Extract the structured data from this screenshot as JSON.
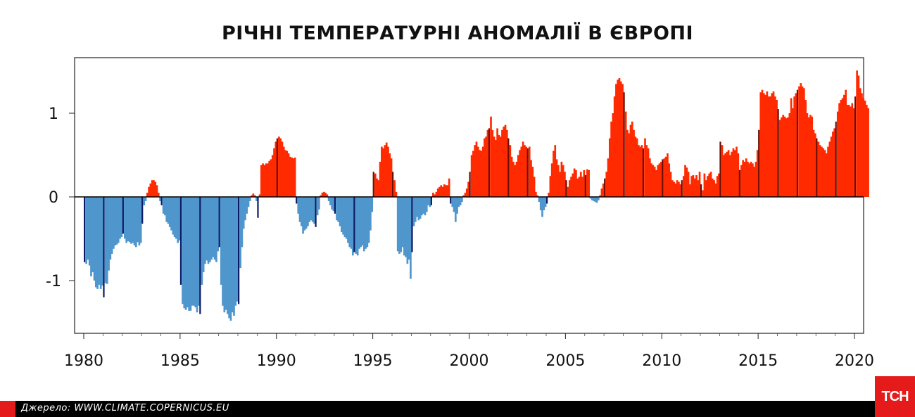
{
  "chart_data": {
    "type": "bar",
    "title": "РІЧНІ ТЕМПЕРАТУРНІ АНОМАЛІЇ В ЄВРОПІ",
    "xlabel": "",
    "ylabel": "",
    "xlim": [
      1979.75,
      2020.0
    ],
    "ylim": [
      -1.65,
      1.7
    ],
    "x_ticks": [
      1980,
      1985,
      1990,
      1995,
      2000,
      2005,
      2010,
      2015,
      2020
    ],
    "x_tick_labels": [
      "1980",
      "1985",
      "1990",
      "1995",
      "2000",
      "2005",
      "2010",
      "2015",
      "2020"
    ],
    "y_ticks": [
      1,
      0,
      -1
    ],
    "y_tick_labels": [
      "1",
      "0",
      "-1"
    ],
    "description_note": "Rolling 12-month average anomaly (°C) sampled monthly; January values highlighted",
    "positive_color": "#ff2a00",
    "negative_color": "#4f96cc",
    "highlight_positive_color": "#6b0d00",
    "highlight_negative_color": "#0b1a66",
    "series": [
      {
        "name": "Temperature anomaly",
        "x_start": 1980.0,
        "x_step": 0.0833333,
        "values": [
          -0.78,
          -0.8,
          -0.75,
          -0.82,
          -0.95,
          -0.9,
          -1.0,
          -1.08,
          -1.1,
          -1.05,
          -1.1,
          -1.06,
          -1.2,
          -1.03,
          -1.04,
          -0.88,
          -0.75,
          -0.68,
          -0.62,
          -0.58,
          -0.57,
          -0.55,
          -0.5,
          -0.48,
          -0.44,
          -0.5,
          -0.55,
          -0.53,
          -0.54,
          -0.56,
          -0.55,
          -0.58,
          -0.6,
          -0.54,
          -0.58,
          -0.55,
          -0.32,
          -0.1,
          -0.05,
          0.05,
          0.12,
          0.16,
          0.2,
          0.2,
          0.18,
          0.14,
          0.05,
          -0.05,
          -0.1,
          -0.2,
          -0.22,
          -0.3,
          -0.32,
          -0.36,
          -0.4,
          -0.45,
          -0.48,
          -0.5,
          -0.55,
          -0.52,
          -1.05,
          -1.28,
          -1.33,
          -1.35,
          -1.32,
          -1.36,
          -1.36,
          -1.3,
          -1.3,
          -1.32,
          -1.38,
          -1.3,
          -1.4,
          -1.05,
          -0.9,
          -0.8,
          -0.76,
          -0.8,
          -0.78,
          -0.75,
          -0.72,
          -0.75,
          -0.78,
          -0.65,
          -0.6,
          -1.05,
          -1.3,
          -1.38,
          -1.35,
          -1.4,
          -1.45,
          -1.48,
          -1.38,
          -1.42,
          -1.3,
          -1.25,
          -1.28,
          -0.85,
          -0.6,
          -0.38,
          -0.28,
          -0.2,
          -0.12,
          -0.05,
          0.02,
          0.04,
          0.02,
          -0.05,
          -0.25,
          0.03,
          0.38,
          0.4,
          0.38,
          0.4,
          0.4,
          0.43,
          0.45,
          0.5,
          0.58,
          0.66,
          0.7,
          0.72,
          0.7,
          0.66,
          0.6,
          0.56,
          0.55,
          0.52,
          0.48,
          0.47,
          0.46,
          0.47,
          -0.08,
          -0.2,
          -0.3,
          -0.35,
          -0.44,
          -0.4,
          -0.38,
          -0.35,
          -0.3,
          -0.28,
          -0.3,
          -0.32,
          -0.36,
          -0.22,
          -0.15,
          0.02,
          0.05,
          0.06,
          0.05,
          0.03,
          -0.05,
          -0.1,
          -0.15,
          -0.17,
          -0.2,
          -0.28,
          -0.3,
          -0.35,
          -0.42,
          -0.45,
          -0.48,
          -0.5,
          -0.55,
          -0.6,
          -0.62,
          -0.7,
          -0.66,
          -0.68,
          -0.7,
          -0.62,
          -0.6,
          -0.58,
          -0.65,
          -0.62,
          -0.6,
          -0.55,
          -0.4,
          -0.18,
          0.3,
          0.28,
          0.22,
          0.2,
          0.42,
          0.6,
          0.58,
          0.62,
          0.65,
          0.6,
          0.52,
          0.46,
          0.3,
          0.2,
          0.06,
          -0.65,
          -0.68,
          -0.66,
          -0.6,
          -0.7,
          -0.72,
          -0.8,
          -0.75,
          -0.98,
          -0.66,
          -0.35,
          -0.3,
          -0.24,
          -0.28,
          -0.26,
          -0.22,
          -0.2,
          -0.22,
          -0.18,
          -0.1,
          -0.12,
          -0.1,
          0.05,
          0.03,
          0.06,
          0.1,
          0.12,
          0.14,
          0.12,
          0.15,
          0.14,
          0.14,
          0.22,
          -0.08,
          -0.12,
          -0.18,
          -0.3,
          -0.2,
          -0.12,
          -0.1,
          -0.06,
          0.02,
          0.05,
          0.1,
          0.18,
          0.3,
          0.5,
          0.55,
          0.62,
          0.66,
          0.6,
          0.56,
          0.55,
          0.6,
          0.7,
          0.72,
          0.8,
          0.82,
          0.96,
          0.8,
          0.72,
          0.68,
          0.82,
          0.74,
          0.72,
          0.8,
          0.84,
          0.86,
          0.8,
          0.7,
          0.62,
          0.48,
          0.42,
          0.38,
          0.42,
          0.5,
          0.56,
          0.6,
          0.66,
          0.62,
          0.6,
          0.58,
          0.6,
          0.44,
          0.36,
          0.24,
          0.06,
          0.02,
          -0.06,
          -0.16,
          -0.24,
          -0.16,
          -0.12,
          -0.08,
          0.05,
          0.25,
          0.4,
          0.55,
          0.62,
          0.45,
          0.38,
          0.3,
          0.42,
          0.38,
          0.3,
          0.2,
          0.12,
          0.2,
          0.24,
          0.28,
          0.34,
          0.32,
          0.22,
          0.24,
          0.3,
          0.24,
          0.32,
          0.26,
          0.33,
          0.32,
          -0.02,
          -0.04,
          -0.05,
          -0.06,
          -0.07,
          -0.04,
          0.02,
          0.1,
          0.16,
          0.22,
          0.3,
          0.46,
          0.7,
          0.9,
          1.0,
          1.2,
          1.35,
          1.4,
          1.42,
          1.38,
          1.35,
          1.25,
          1.02,
          0.8,
          0.76,
          0.86,
          0.9,
          0.8,
          0.72,
          0.7,
          0.62,
          0.6,
          0.62,
          0.58,
          0.7,
          0.62,
          0.58,
          0.46,
          0.4,
          0.38,
          0.36,
          0.32,
          0.38,
          0.4,
          0.42,
          0.45,
          0.46,
          0.48,
          0.52,
          0.4,
          0.3,
          0.2,
          0.18,
          0.16,
          0.2,
          0.18,
          0.15,
          0.2,
          0.25,
          0.38,
          0.35,
          0.3,
          0.15,
          0.25,
          0.26,
          0.22,
          0.26,
          0.2,
          0.3,
          0.15,
          0.08,
          0.28,
          0.2,
          0.25,
          0.28,
          0.3,
          0.22,
          0.2,
          0.16,
          0.25,
          0.28,
          0.66,
          0.62,
          0.5,
          0.52,
          0.54,
          0.56,
          0.5,
          0.54,
          0.58,
          0.56,
          0.6,
          0.52,
          0.32,
          0.38,
          0.44,
          0.42,
          0.46,
          0.42,
          0.4,
          0.42,
          0.4,
          0.36,
          0.42,
          0.56,
          0.8,
          1.25,
          1.28,
          1.24,
          1.22,
          1.26,
          1.2,
          1.2,
          1.24,
          1.26,
          1.2,
          1.16,
          1.05,
          0.92,
          0.95,
          0.98,
          0.96,
          0.94,
          0.95,
          1.0,
          1.18,
          1.06,
          1.2,
          1.24,
          1.28,
          1.32,
          1.36,
          1.32,
          1.3,
          1.16,
          1.0,
          0.95,
          0.98,
          0.96,
          0.8,
          0.76,
          0.7,
          0.66,
          0.62,
          0.6,
          0.58,
          0.56,
          0.52,
          0.6,
          0.66,
          0.72,
          0.78,
          0.82,
          0.9,
          1.02,
          1.12,
          1.16,
          1.18,
          1.22,
          1.28,
          1.1,
          1.1,
          1.08,
          1.12,
          1.06,
          1.2,
          1.51,
          1.45,
          1.3,
          1.24,
          1.18,
          1.15,
          1.1,
          1.06
        ]
      }
    ]
  },
  "footer": {
    "source_text": "Джерело: WWW.CLIMATE.COPERNICUS.EU"
  },
  "logo": {
    "text": "ТСН"
  }
}
